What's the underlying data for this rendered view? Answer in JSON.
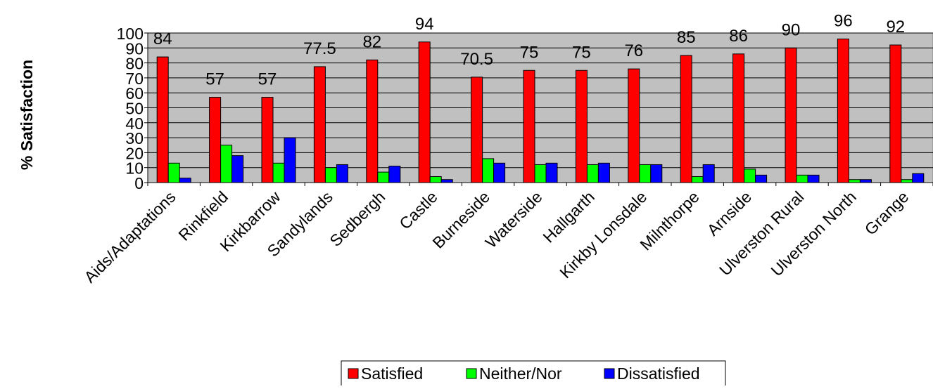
{
  "chart_data": {
    "type": "bar",
    "title": "",
    "xlabel": "",
    "ylabel": "% Satisfaction",
    "ylim": [
      0,
      100
    ],
    "yticks": [
      0,
      10,
      20,
      30,
      40,
      50,
      60,
      70,
      80,
      90,
      100
    ],
    "grid": true,
    "legend_position": "bottom",
    "plot_background": "#c0c0c0",
    "categories": [
      "Aids/Adaptations",
      "Rinkfield",
      "Kirkbarrow",
      "Sandylands",
      "Sedbergh",
      "Castle",
      "Burneside",
      "Waterside",
      "Hallgarth",
      "Kirkby Lonsdale",
      "Milnthorpe",
      "Arnside",
      "Ulverston Rural",
      "Ulverston North",
      "Grange"
    ],
    "series": [
      {
        "name": "Satisfied",
        "color": "#ff0000",
        "values": [
          84,
          57,
          57,
          77.5,
          82,
          94,
          70.5,
          75,
          75,
          76,
          85,
          86,
          90,
          96,
          92
        ]
      },
      {
        "name": "Neither/Nor",
        "color": "#00ff00",
        "values": [
          13,
          25,
          13,
          10,
          7,
          4,
          16,
          12,
          12,
          12,
          4,
          9,
          5,
          2,
          2
        ]
      },
      {
        "name": "Dissatisfied",
        "color": "#0000ff",
        "values": [
          3,
          18,
          30,
          12,
          11,
          2,
          13,
          13,
          13,
          12,
          12,
          5,
          5,
          2,
          6
        ]
      }
    ],
    "data_labels": [
      "84",
      "57",
      "57",
      "77.5",
      "82",
      "94",
      "70.5",
      "75",
      "75",
      "76",
      "85",
      "86",
      "90",
      "96",
      "92"
    ]
  }
}
